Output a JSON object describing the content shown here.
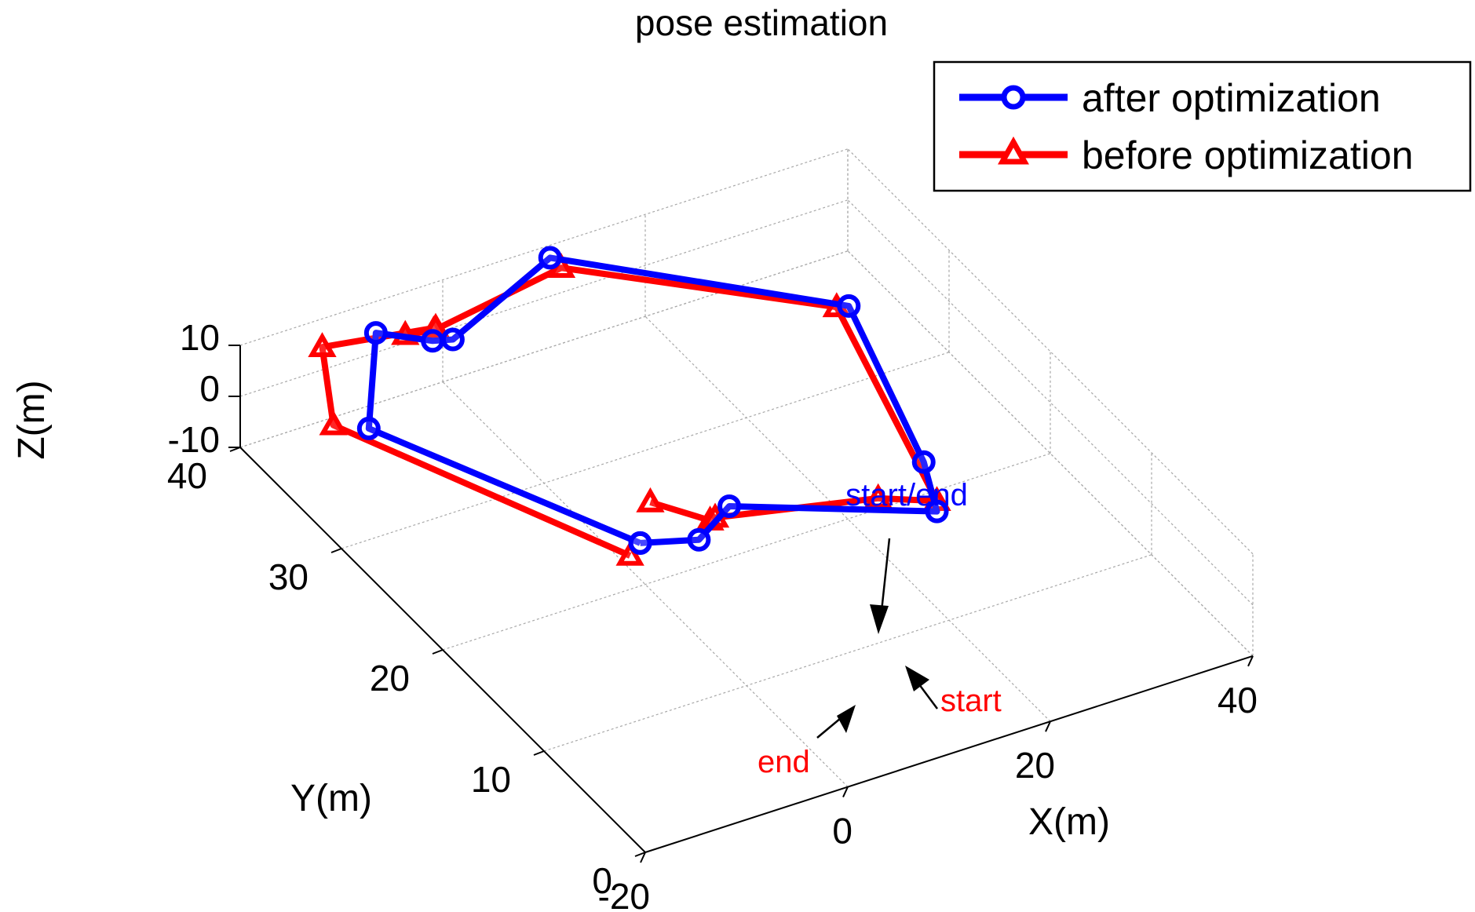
{
  "chart_data": {
    "type": "line3d",
    "title": "pose estimation",
    "xlabel": "X(m)",
    "ylabel": "Y(m)",
    "zlabel": "Z(m)",
    "xlim": [
      -20,
      40
    ],
    "ylim": [
      0,
      40
    ],
    "zlim": [
      -10,
      10
    ],
    "x_ticks": [
      "-20",
      "0",
      "20",
      "40"
    ],
    "y_ticks": [
      "0",
      "10",
      "20",
      "30",
      "40"
    ],
    "z_ticks": [
      "-10",
      "0",
      "10"
    ],
    "grid": true,
    "legend_position": "top-right",
    "series": [
      {
        "name": "after optimization",
        "color": "#0000ff",
        "marker": "circle",
        "points": [
          [
            -1.1,
            19.4,
            0
          ],
          [
            -12.8,
            34.5,
            0
          ],
          [
            -7.8,
            38.8,
            7
          ],
          [
            -3.4,
            37.6,
            5
          ],
          [
            -1.6,
            37.4,
            4.5
          ],
          [
            8.9,
            38.3,
            12
          ],
          [
            27.4,
            27.3,
            12.5
          ],
          [
            22.3,
            14.8,
            10
          ],
          [
            21.5,
            12.7,
            5
          ],
          [
            8.3,
            20.0,
            0
          ],
          [
            4.1,
            18.8,
            -1.5
          ],
          [
            -1.1,
            19.4,
            0
          ]
        ]
      },
      {
        "name": "before optimization",
        "color": "#ff0000",
        "marker": "triangle",
        "points": [
          [
            2.7,
            22.2,
            0
          ],
          [
            5.8,
            19.4,
            0
          ],
          [
            6.2,
            19.3,
            0.5
          ],
          [
            18.1,
            15.1,
            5
          ],
          [
            21.9,
            13.1,
            6
          ],
          [
            26.6,
            27.7,
            12
          ],
          [
            8.6,
            36.9,
            13
          ],
          [
            -5.6,
            35.3,
            13
          ],
          [
            -5.0,
            38.7,
            5
          ],
          [
            -2.2,
            38.5,
            5
          ],
          [
            -10.2,
            41.7,
            0
          ],
          [
            -15.2,
            35.6,
            0
          ],
          [
            -2.8,
            18.7,
            0
          ]
        ]
      }
    ],
    "annotations": [
      {
        "text": "start/end",
        "color": "#0000ff"
      },
      {
        "text": "start",
        "color": "#ff0000"
      },
      {
        "text": "end",
        "color": "#ff0000"
      }
    ]
  }
}
